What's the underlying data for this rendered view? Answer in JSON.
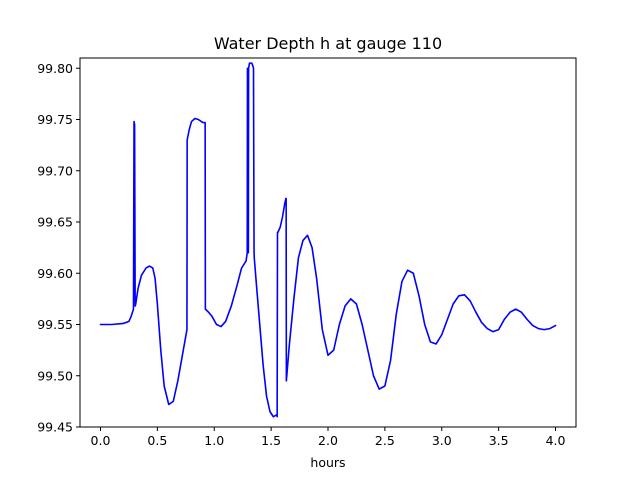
{
  "chart_data": {
    "type": "line",
    "title": "Water Depth h at gauge 110",
    "xlabel": "hours",
    "ylabel": "",
    "xlim": [
      -0.18,
      4.18
    ],
    "ylim": [
      99.45,
      99.81
    ],
    "xticks": [
      0.0,
      0.5,
      1.0,
      1.5,
      2.0,
      2.5,
      3.0,
      3.5,
      4.0
    ],
    "xtick_labels": [
      "0.0",
      "0.5",
      "1.0",
      "1.5",
      "2.0",
      "2.5",
      "3.0",
      "3.5",
      "4.0"
    ],
    "yticks": [
      99.45,
      99.5,
      99.55,
      99.6,
      99.65,
      99.7,
      99.75,
      99.8
    ],
    "ytick_labels": [
      "99.45",
      "99.50",
      "99.55",
      "99.60",
      "99.65",
      "99.70",
      "99.75",
      "99.80"
    ],
    "grid": false,
    "legend": "none",
    "series": [
      {
        "color": "#0000ff",
        "x": [
          0.0,
          0.1,
          0.2,
          0.25,
          0.27,
          0.29,
          0.295,
          0.3,
          0.305,
          0.31,
          0.33,
          0.36,
          0.4,
          0.43,
          0.46,
          0.48,
          0.5,
          0.53,
          0.56,
          0.6,
          0.64,
          0.68,
          0.72,
          0.76,
          0.762,
          0.78,
          0.8,
          0.83,
          0.86,
          0.9,
          0.92,
          0.922,
          0.95,
          0.98,
          1.02,
          1.06,
          1.1,
          1.15,
          1.2,
          1.24,
          1.28,
          1.29,
          1.292,
          1.3,
          1.302,
          1.31,
          1.315,
          1.33,
          1.34,
          1.345,
          1.35,
          1.352,
          1.37,
          1.4,
          1.43,
          1.46,
          1.49,
          1.52,
          1.55,
          1.553,
          1.556,
          1.56,
          1.58,
          1.6,
          1.62,
          1.63,
          1.632,
          1.634,
          1.66,
          1.7,
          1.74,
          1.78,
          1.82,
          1.86,
          1.9,
          1.95,
          2.0,
          2.05,
          2.1,
          2.15,
          2.2,
          2.25,
          2.3,
          2.35,
          2.4,
          2.45,
          2.5,
          2.55,
          2.6,
          2.65,
          2.7,
          2.75,
          2.8,
          2.85,
          2.9,
          2.95,
          3.0,
          3.05,
          3.1,
          3.15,
          3.2,
          3.25,
          3.3,
          3.35,
          3.4,
          3.45,
          3.5,
          3.55,
          3.6,
          3.65,
          3.7,
          3.75,
          3.8,
          3.85,
          3.9,
          3.95,
          4.0
        ],
        "y": [
          99.55,
          99.55,
          99.551,
          99.553,
          99.558,
          99.565,
          99.748,
          99.745,
          99.568,
          99.57,
          99.585,
          99.598,
          99.605,
          99.607,
          99.605,
          99.595,
          99.57,
          99.525,
          99.49,
          99.472,
          99.475,
          99.495,
          99.52,
          99.545,
          99.73,
          99.74,
          99.748,
          99.751,
          99.75,
          99.747,
          99.747,
          99.565,
          99.562,
          99.558,
          99.55,
          99.548,
          99.553,
          99.568,
          99.588,
          99.605,
          99.612,
          99.62,
          99.8,
          99.62,
          99.8,
          99.805,
          99.805,
          99.805,
          99.802,
          99.8,
          99.62,
          99.615,
          99.59,
          99.55,
          99.51,
          99.48,
          99.465,
          99.46,
          99.462,
          99.46,
          99.64,
          99.64,
          99.645,
          99.655,
          99.668,
          99.673,
          99.673,
          99.495,
          99.53,
          99.575,
          99.615,
          99.632,
          99.637,
          99.625,
          99.595,
          99.545,
          99.52,
          99.525,
          99.55,
          99.568,
          99.575,
          99.57,
          99.55,
          99.525,
          99.5,
          99.487,
          99.49,
          99.515,
          99.56,
          99.592,
          99.603,
          99.6,
          99.578,
          99.55,
          99.533,
          99.531,
          99.54,
          99.555,
          99.57,
          99.578,
          99.579,
          99.573,
          99.562,
          99.552,
          99.546,
          99.543,
          99.545,
          99.555,
          99.562,
          99.565,
          99.562,
          99.555,
          99.549,
          99.546,
          99.545,
          99.546,
          99.549
        ]
      }
    ]
  }
}
